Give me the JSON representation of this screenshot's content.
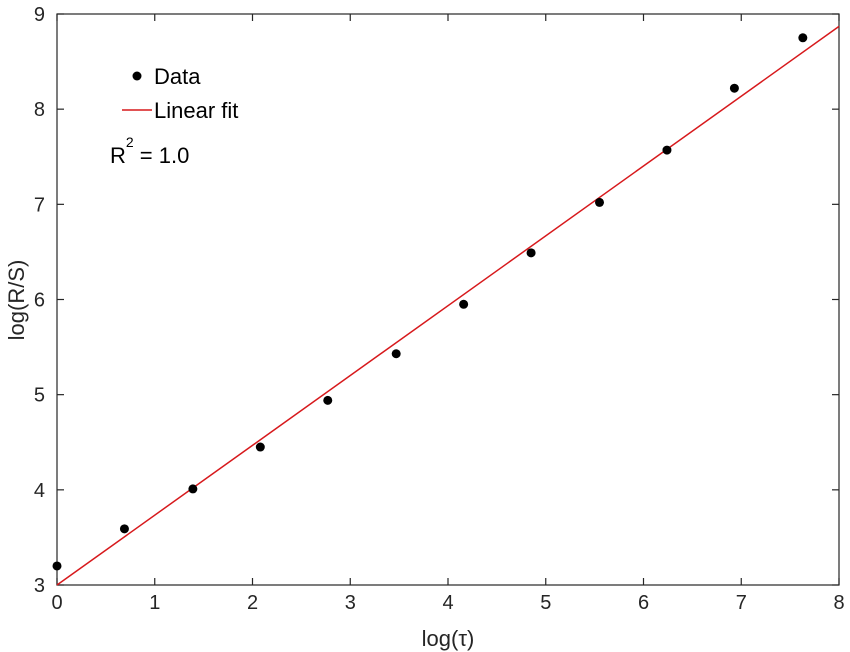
{
  "chart_data": {
    "type": "scatter",
    "xlabel": "log(τ)",
    "ylabel": "log(R/S)",
    "xlim": [
      0,
      8
    ],
    "ylim": [
      3,
      9
    ],
    "xticks": [
      "0",
      "1",
      "2",
      "3",
      "4",
      "5",
      "6",
      "7",
      "8"
    ],
    "yticks": [
      "3",
      "4",
      "5",
      "6",
      "7",
      "8",
      "9"
    ],
    "grid": false,
    "legend_position": "top-left",
    "series": [
      {
        "name": "Data",
        "kind": "scatter",
        "color": "#000000",
        "x": [
          0,
          0.69,
          1.39,
          2.08,
          2.77,
          3.47,
          4.16,
          4.85,
          5.55,
          6.24,
          6.93,
          7.63
        ],
        "y": [
          3.2,
          3.59,
          4.01,
          4.45,
          4.94,
          5.43,
          5.95,
          6.49,
          7.02,
          7.57,
          8.22,
          8.75
        ]
      },
      {
        "name": "Linear fit",
        "kind": "line",
        "color": "#d7191c",
        "x": [
          0,
          8
        ],
        "y": [
          3.0,
          8.87
        ]
      }
    ],
    "annotation": {
      "base": "R",
      "sup": "2",
      "rest": " = 1.0"
    }
  }
}
